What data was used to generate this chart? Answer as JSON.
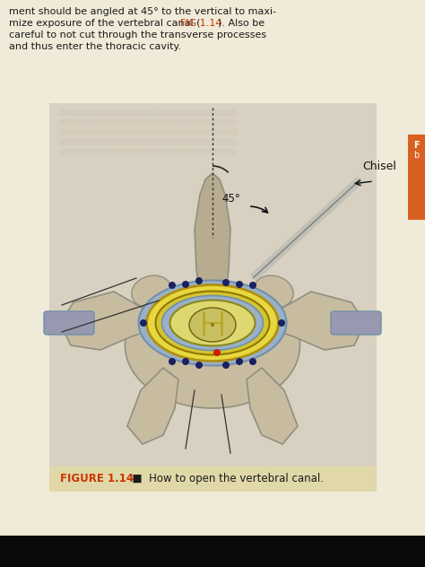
{
  "bg_color": "#f0ead8",
  "fig_bg": "#e8dfc0",
  "caption_strip_color": "#e0d8a8",
  "white_area_color": "#d8d0c0",
  "blurred_bg_color": "#c8bfa8",
  "text_top_color": "#1a1a1a",
  "fig_ref_color": "#cc3300",
  "caption_bold": "FIGURE 1.14",
  "caption_text": "  ■  How to open the vertebral canal.",
  "caption_color_bold": "#cc3300",
  "caption_color": "#1a1a1a",
  "angle_label": "45°",
  "chisel_label": "Chisel",
  "bone_color": "#c8bca0",
  "bone_color_light": "#d8ceb8",
  "bone_outline": "#909080",
  "spinous_color": "#b8ac90",
  "canal_blue": "#9ab0c8",
  "canal_blue_dark": "#7090aa",
  "yellow_outer": "#e8d840",
  "yellow_mid": "#d4c430",
  "yellow_inner": "#e8dc70",
  "cord_color": "#ddd870",
  "cord_center": "#c8c060",
  "cord_shadow": "#b0a840",
  "pedicle_gray": "#9090a8",
  "pedicle_band": "#9898b0",
  "dot_dark": "#1a2060",
  "dot_red": "#cc2200",
  "black": "#111111",
  "dark_gray": "#333333",
  "chisel_silver": "#c0c0b8",
  "chisel_dark": "#808078",
  "right_bar_color": "#d86020",
  "bottom_black": "#0a0a0a"
}
